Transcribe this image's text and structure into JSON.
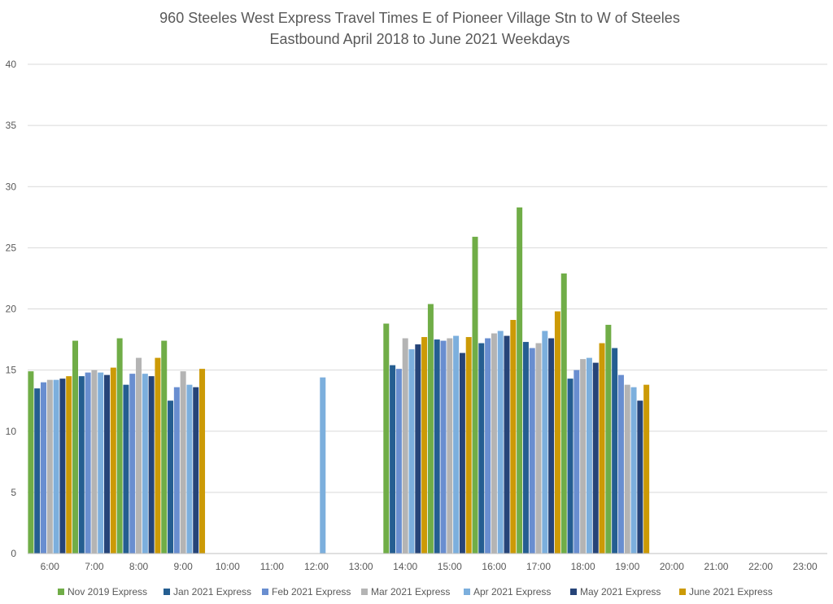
{
  "chart_data": {
    "type": "bar",
    "title": "960 Steeles West Express Travel Times E of Pioneer Village Stn to W of Steeles",
    "subtitle": "Eastbound April 2018 to June 2021 Weekdays",
    "xlabel": "",
    "ylabel": "",
    "ylim": [
      0,
      40
    ],
    "yticks": [
      0,
      5,
      10,
      15,
      20,
      25,
      30,
      35,
      40
    ],
    "grid": true,
    "legend_position": "bottom",
    "categories": [
      "6:00",
      "7:00",
      "8:00",
      "9:00",
      "10:00",
      "11:00",
      "12:00",
      "13:00",
      "14:00",
      "15:00",
      "16:00",
      "17:00",
      "18:00",
      "19:00",
      "20:00",
      "21:00",
      "22:00",
      "23:00"
    ],
    "series": [
      {
        "name": "Nov 2019 Express",
        "color": "#70AD47",
        "values": [
          14.9,
          17.4,
          17.6,
          17.4,
          null,
          null,
          null,
          null,
          18.8,
          20.4,
          25.9,
          28.3,
          22.9,
          18.7,
          null,
          null,
          null,
          null
        ]
      },
      {
        "name": "Jan 2021 Express",
        "color": "#255E91",
        "values": [
          13.5,
          14.5,
          13.8,
          12.5,
          null,
          null,
          null,
          null,
          15.4,
          17.5,
          17.2,
          17.3,
          14.3,
          16.8,
          null,
          null,
          null,
          null
        ]
      },
      {
        "name": "Feb 2021 Express",
        "color": "#698ED0",
        "values": [
          14.0,
          14.8,
          14.7,
          13.6,
          null,
          null,
          null,
          null,
          15.1,
          17.4,
          17.6,
          16.8,
          15.0,
          14.6,
          null,
          null,
          null,
          null
        ]
      },
      {
        "name": "Mar 2021 Express",
        "color": "#B4B4B4",
        "values": [
          14.2,
          15.0,
          16.0,
          14.9,
          null,
          null,
          null,
          null,
          17.6,
          17.6,
          18.0,
          17.2,
          15.9,
          13.8,
          null,
          null,
          null,
          null
        ]
      },
      {
        "name": "Apr 2021 Express",
        "color": "#7CAFDD",
        "values": [
          14.2,
          14.8,
          14.7,
          13.8,
          null,
          null,
          14.4,
          null,
          16.7,
          17.8,
          18.2,
          18.2,
          16.0,
          13.6,
          null,
          null,
          null,
          null
        ]
      },
      {
        "name": "May 2021 Express",
        "color": "#264478",
        "values": [
          14.3,
          14.6,
          14.5,
          13.6,
          null,
          null,
          null,
          null,
          17.1,
          16.4,
          17.8,
          17.6,
          15.6,
          12.5,
          null,
          null,
          null,
          null
        ]
      },
      {
        "name": "June 2021 Express",
        "color": "#CC9A06",
        "values": [
          14.5,
          15.2,
          16.0,
          15.1,
          null,
          null,
          null,
          null,
          17.7,
          17.7,
          19.1,
          19.8,
          17.2,
          13.8,
          null,
          null,
          null,
          null
        ]
      }
    ]
  }
}
